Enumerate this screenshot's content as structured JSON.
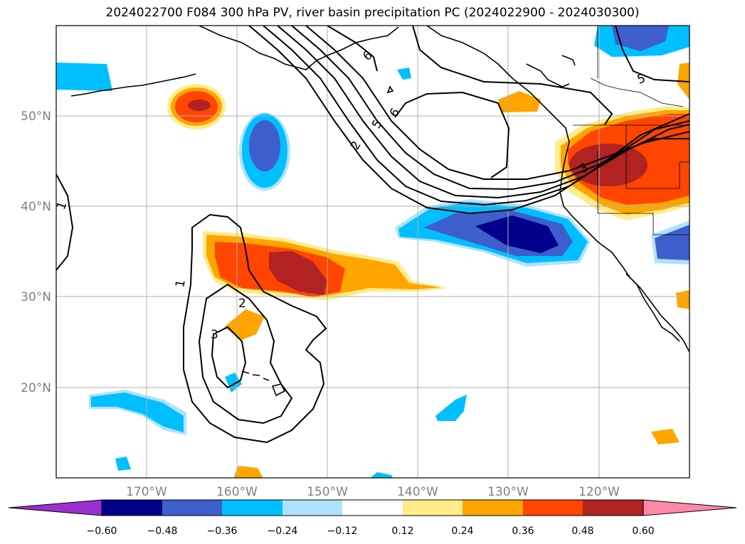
{
  "title": "2024022700 F084 300 hPa PV, river basin precipitation PC (2024022900 - 2024030300)",
  "map": {
    "extent": {
      "lon": [
        -180,
        -110
      ],
      "lat": [
        10,
        60
      ]
    },
    "lat_ticks": [
      {
        "value": 50,
        "label": "50°N"
      },
      {
        "value": 40,
        "label": "40°N"
      },
      {
        "value": 30,
        "label": "30°N"
      },
      {
        "value": 20,
        "label": "20°N"
      }
    ],
    "lon_ticks": [
      {
        "value": -170,
        "label": "170°W"
      },
      {
        "value": -160,
        "label": "160°W"
      },
      {
        "value": -150,
        "label": "150°W"
      },
      {
        "value": -140,
        "label": "140°W"
      },
      {
        "value": -130,
        "label": "130°W"
      },
      {
        "value": -120,
        "label": "120°W"
      }
    ],
    "grid": true,
    "pv_contour_labels": [
      "1",
      "1",
      "2",
      "3",
      "2",
      "5",
      "6",
      "6",
      "3",
      "5"
    ]
  },
  "colorbar": {
    "extend": "both",
    "levels": [
      "−0.60",
      "−0.48",
      "−0.36",
      "−0.24",
      "−0.12",
      "0.12",
      "0.24",
      "0.36",
      "0.48",
      "0.60"
    ],
    "colors": [
      "#9b30d0",
      "#00008b",
      "#3c5fcd",
      "#00bfff",
      "#b0e2ff",
      "#ffffff",
      "#ffec8b",
      "#ffa500",
      "#ff4500",
      "#b22222",
      "#ff88aa"
    ]
  }
}
